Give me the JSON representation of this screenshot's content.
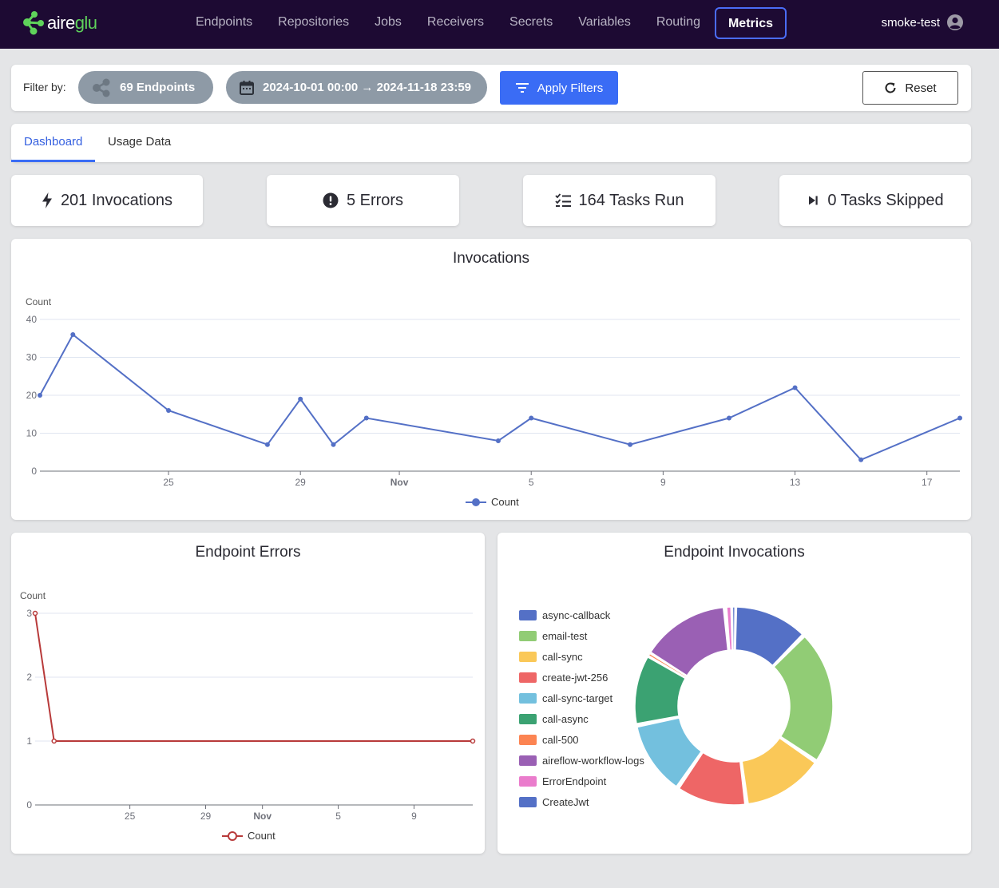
{
  "app": {
    "logo_prefix": "aire",
    "logo_suffix": "glu",
    "user": "smoke-test"
  },
  "nav": {
    "items": [
      "Endpoints",
      "Repositories",
      "Jobs",
      "Receivers",
      "Secrets",
      "Variables",
      "Routing",
      "Metrics"
    ],
    "active": "Metrics"
  },
  "filters": {
    "label": "Filter by:",
    "endpoints": "69 Endpoints",
    "date_range": "2024-10-01 00:00 → 2024-11-18 23:59",
    "apply_label": "Apply Filters",
    "reset_label": "Reset"
  },
  "tabs": {
    "dashboard": "Dashboard",
    "usage": "Usage Data"
  },
  "stats": {
    "invocations": "201 Invocations",
    "errors": "5 Errors",
    "tasks_run": "164 Tasks Run",
    "tasks_skipped": "0 Tasks Skipped"
  },
  "colors": {
    "accent": "#3a6cf5",
    "line_invocations": "#5470c6",
    "line_errors": "#b83a3a"
  },
  "chart_data": [
    {
      "type": "line",
      "title": "Invocations",
      "ylabel": "Count",
      "legend": "Count",
      "legend_position": "bottom",
      "ylim": [
        0,
        40
      ],
      "yticks": [
        0,
        10,
        20,
        30,
        40
      ],
      "x_ticks": [
        {
          "label": "25",
          "day": 25
        },
        {
          "label": "29",
          "day": 29
        },
        {
          "label": "Nov",
          "day": 32
        },
        {
          "label": "5",
          "day": 36
        },
        {
          "label": "9",
          "day": 40
        },
        {
          "label": "13",
          "day": 44
        },
        {
          "label": "17",
          "day": 48
        }
      ],
      "xlim_days": [
        21.1,
        49
      ],
      "x": [
        "2024-10-21",
        "2024-10-22",
        "2024-10-25",
        "2024-10-28",
        "2024-10-29",
        "2024-10-30",
        "2024-10-31",
        "2024-11-04",
        "2024-11-05",
        "2024-11-08",
        "2024-11-11",
        "2024-11-13",
        "2024-11-15",
        "2024-11-18"
      ],
      "x_days": [
        21.1,
        22.1,
        25,
        28,
        29,
        30,
        31,
        35,
        36,
        39,
        42,
        44,
        46,
        49
      ],
      "values": [
        20,
        36,
        16,
        7,
        19,
        7,
        14,
        8,
        14,
        7,
        14,
        22,
        3,
        14
      ]
    },
    {
      "type": "line",
      "title": "Endpoint Errors",
      "ylabel": "Count",
      "legend": "Count",
      "legend_position": "bottom",
      "ylim": [
        0,
        3
      ],
      "yticks": [
        0,
        1,
        2,
        3
      ],
      "x_ticks": [
        {
          "label": "25",
          "day": 25
        },
        {
          "label": "29",
          "day": 29
        },
        {
          "label": "Nov",
          "day": 32
        },
        {
          "label": "5",
          "day": 36
        },
        {
          "label": "9",
          "day": 40
        },
        {
          "label": "13",
          "day": 44
        }
      ],
      "xlim_days": [
        20,
        43.1
      ],
      "x_days": [
        20,
        21,
        43.1
      ],
      "values": [
        3,
        1,
        1
      ]
    },
    {
      "type": "pie",
      "title": "Endpoint Invocations",
      "donut": true,
      "legend_position": "left",
      "categories": [
        "async-callback",
        "email-test",
        "call-sync",
        "create-jwt-256",
        "call-sync-target",
        "call-async",
        "call-500",
        "aireflow-workflow-logs",
        "ErrorEndpoint",
        "CreateJwt"
      ],
      "colors": [
        "#5470c6",
        "#91cc75",
        "#fac858",
        "#ee6666",
        "#73c0de",
        "#3ba272",
        "#fc8452",
        "#9a60b4",
        "#ea7ccc",
        "#5470c6"
      ],
      "values": [
        20,
        36,
        22,
        19,
        20,
        19,
        0.6,
        24,
        2,
        0.6
      ]
    }
  ]
}
